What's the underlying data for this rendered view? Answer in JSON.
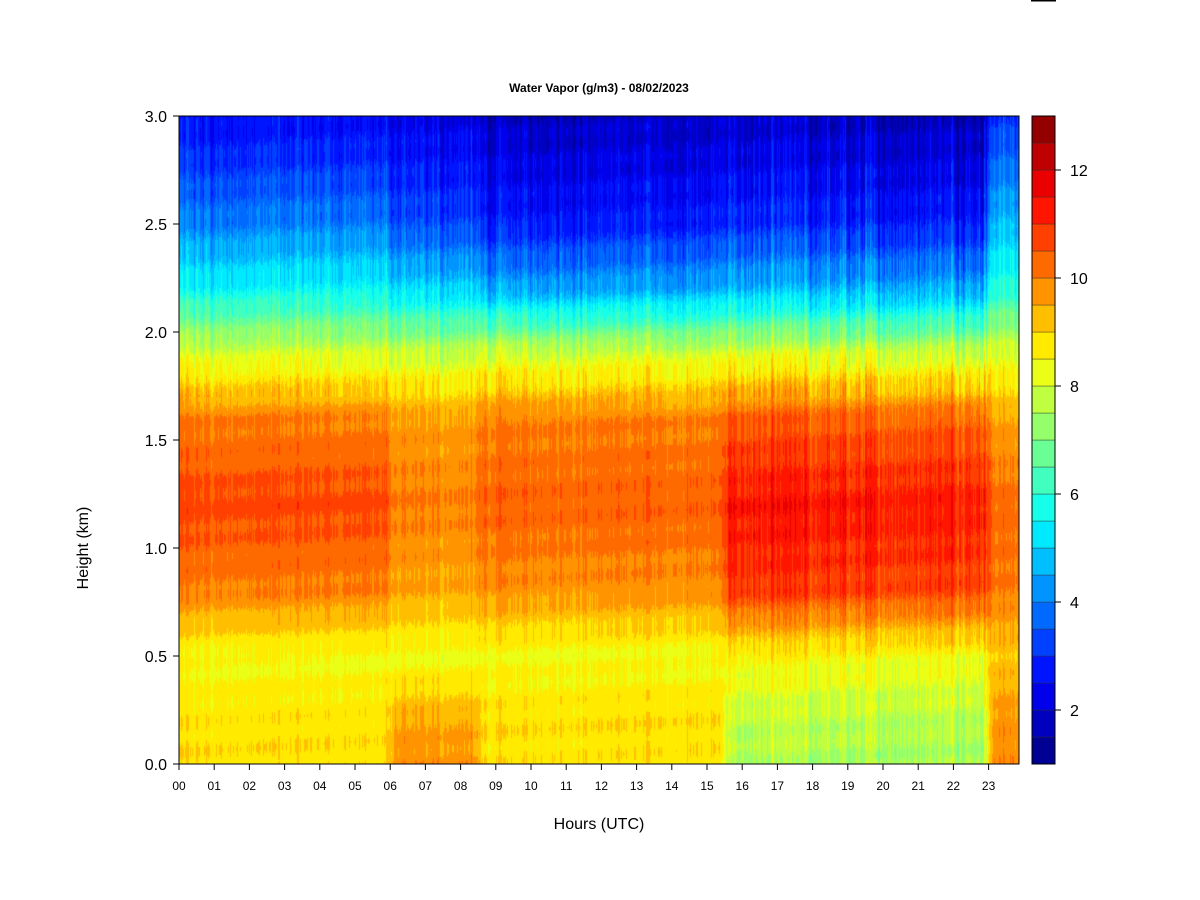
{
  "chart_data": {
    "type": "heatmap",
    "title": "Water Vapor (g/m3) - 08/02/2023",
    "xlabel": "Hours (UTC)",
    "ylabel": "Height (km)",
    "x_ticks": [
      "00",
      "01",
      "02",
      "03",
      "04",
      "05",
      "06",
      "07",
      "08",
      "09",
      "10",
      "11",
      "12",
      "13",
      "14",
      "15",
      "16",
      "17",
      "18",
      "19",
      "20",
      "21",
      "22",
      "23"
    ],
    "x_range_hours": [
      0,
      23.9
    ],
    "y_ticks": [
      "0.0",
      "0.5",
      "1.0",
      "1.5",
      "2.0",
      "2.5",
      "3.0"
    ],
    "ylim_km": [
      0,
      3
    ],
    "colorbar": {
      "range": [
        1,
        13
      ],
      "ticks": [
        "2",
        "4",
        "6",
        "8",
        "10",
        "12"
      ],
      "levels": 24,
      "colormap": [
        "#00007f",
        "#0000ff",
        "#007fff",
        "#00ffff",
        "#7fff7f",
        "#ffff00",
        "#ff7f00",
        "#ff0000",
        "#7f0000"
      ]
    },
    "profiles": [
      {
        "hours": [
          0,
          6
        ],
        "values_g_m3": {
          "0.0": 8.9,
          "0.2": 8.8,
          "0.5": 8.4,
          "0.8": 10.0,
          "1.2": 10.7,
          "1.6": 10.0,
          "1.9": 8.0,
          "2.2": 5.5,
          "2.5": 4.0,
          "2.8": 3.0,
          "3.0": 2.5
        }
      },
      {
        "hours": [
          6,
          8.5
        ],
        "values_g_m3": {
          "0.0": 9.8,
          "0.2": 9.5,
          "0.5": 8.3,
          "0.8": 9.5,
          "1.2": 10.0,
          "1.6": 9.6,
          "1.9": 7.8,
          "2.2": 5.0,
          "2.5": 3.3,
          "2.8": 2.6,
          "3.0": 2.2
        }
      },
      {
        "hours": [
          8.5,
          15.5
        ],
        "values_g_m3": {
          "0.0": 8.8,
          "0.2": 8.9,
          "0.5": 8.4,
          "0.8": 9.8,
          "1.2": 10.4,
          "1.6": 10.0,
          "1.9": 8.0,
          "2.2": 4.5,
          "2.5": 2.8,
          "2.8": 2.2,
          "3.0": 1.8
        }
      },
      {
        "hours": [
          15.5,
          23
        ],
        "values_g_m3": {
          "0.0": 7.5,
          "0.2": 7.7,
          "0.5": 8.5,
          "0.8": 10.8,
          "1.2": 11.3,
          "1.6": 10.4,
          "1.9": 8.0,
          "2.2": 4.6,
          "2.5": 2.9,
          "2.8": 2.2,
          "3.0": 1.8
        }
      },
      {
        "hours": [
          23,
          23.9
        ],
        "values_g_m3": {
          "0.0": 9.9,
          "0.2": 9.8,
          "0.5": 9.2,
          "0.8": 10.1,
          "1.2": 10.3,
          "1.6": 9.6,
          "1.9": 8.2,
          "2.2": 6.0,
          "2.5": 4.8,
          "2.8": 3.8,
          "3.0": 3.2
        }
      }
    ]
  }
}
